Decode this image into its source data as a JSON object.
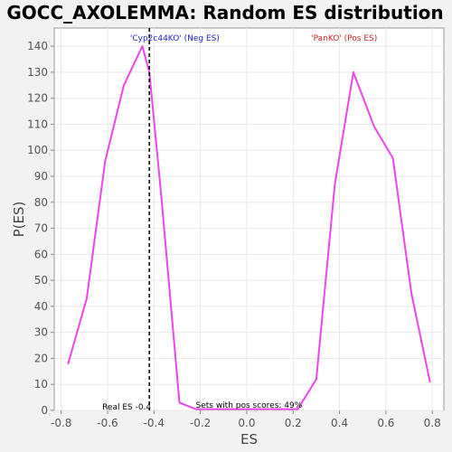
{
  "chart_data": {
    "type": "line",
    "title": "GOCC_AXOLEMMA: Random ES distribution",
    "xlabel": "ES",
    "ylabel": "P(ES)",
    "xlim": [
      -0.83,
      0.85
    ],
    "ylim": [
      0,
      147
    ],
    "xticks": [
      "-0.8",
      "-0.6",
      "-0.4",
      "-0.2",
      "0.0",
      "0.2",
      "0.4",
      "0.6",
      "0.8"
    ],
    "xtick_values": [
      -0.8,
      -0.6,
      -0.4,
      -0.2,
      0.0,
      0.2,
      0.4,
      0.6,
      0.8
    ],
    "yticks": [
      "0",
      "10",
      "20",
      "30",
      "40",
      "50",
      "60",
      "70",
      "80",
      "90",
      "100",
      "110",
      "120",
      "130",
      "140"
    ],
    "ytick_values": [
      0,
      10,
      20,
      30,
      40,
      50,
      60,
      70,
      80,
      90,
      100,
      110,
      120,
      130,
      140
    ],
    "grid": true,
    "series": [
      {
        "color": "#ee44ee",
        "x": [
          -0.77,
          -0.69,
          -0.61,
          -0.53,
          -0.45,
          -0.42,
          -0.37,
          -0.29,
          -0.22,
          -0.14,
          -0.06,
          0.02,
          0.1,
          0.22,
          0.3,
          0.38,
          0.46,
          0.55,
          0.63,
          0.71,
          0.79
        ],
        "y": [
          18,
          43,
          96,
          125,
          140,
          130,
          84,
          3,
          0.5,
          0.5,
          0.5,
          0.5,
          0.5,
          0.5,
          12,
          87,
          130,
          109,
          97,
          45,
          11
        ]
      }
    ],
    "real_es": {
      "value": -0.42,
      "label": "Real ES -0.4"
    },
    "annotations": {
      "neg_label": "'Cyp2c44KO' (Neg ES)",
      "pos_label": "'PanKO' (Pos ES)",
      "pos_scores": "Sets with pos scores: 49%",
      "neg_color": "#2222cc",
      "pos_color": "#cc2222"
    }
  }
}
